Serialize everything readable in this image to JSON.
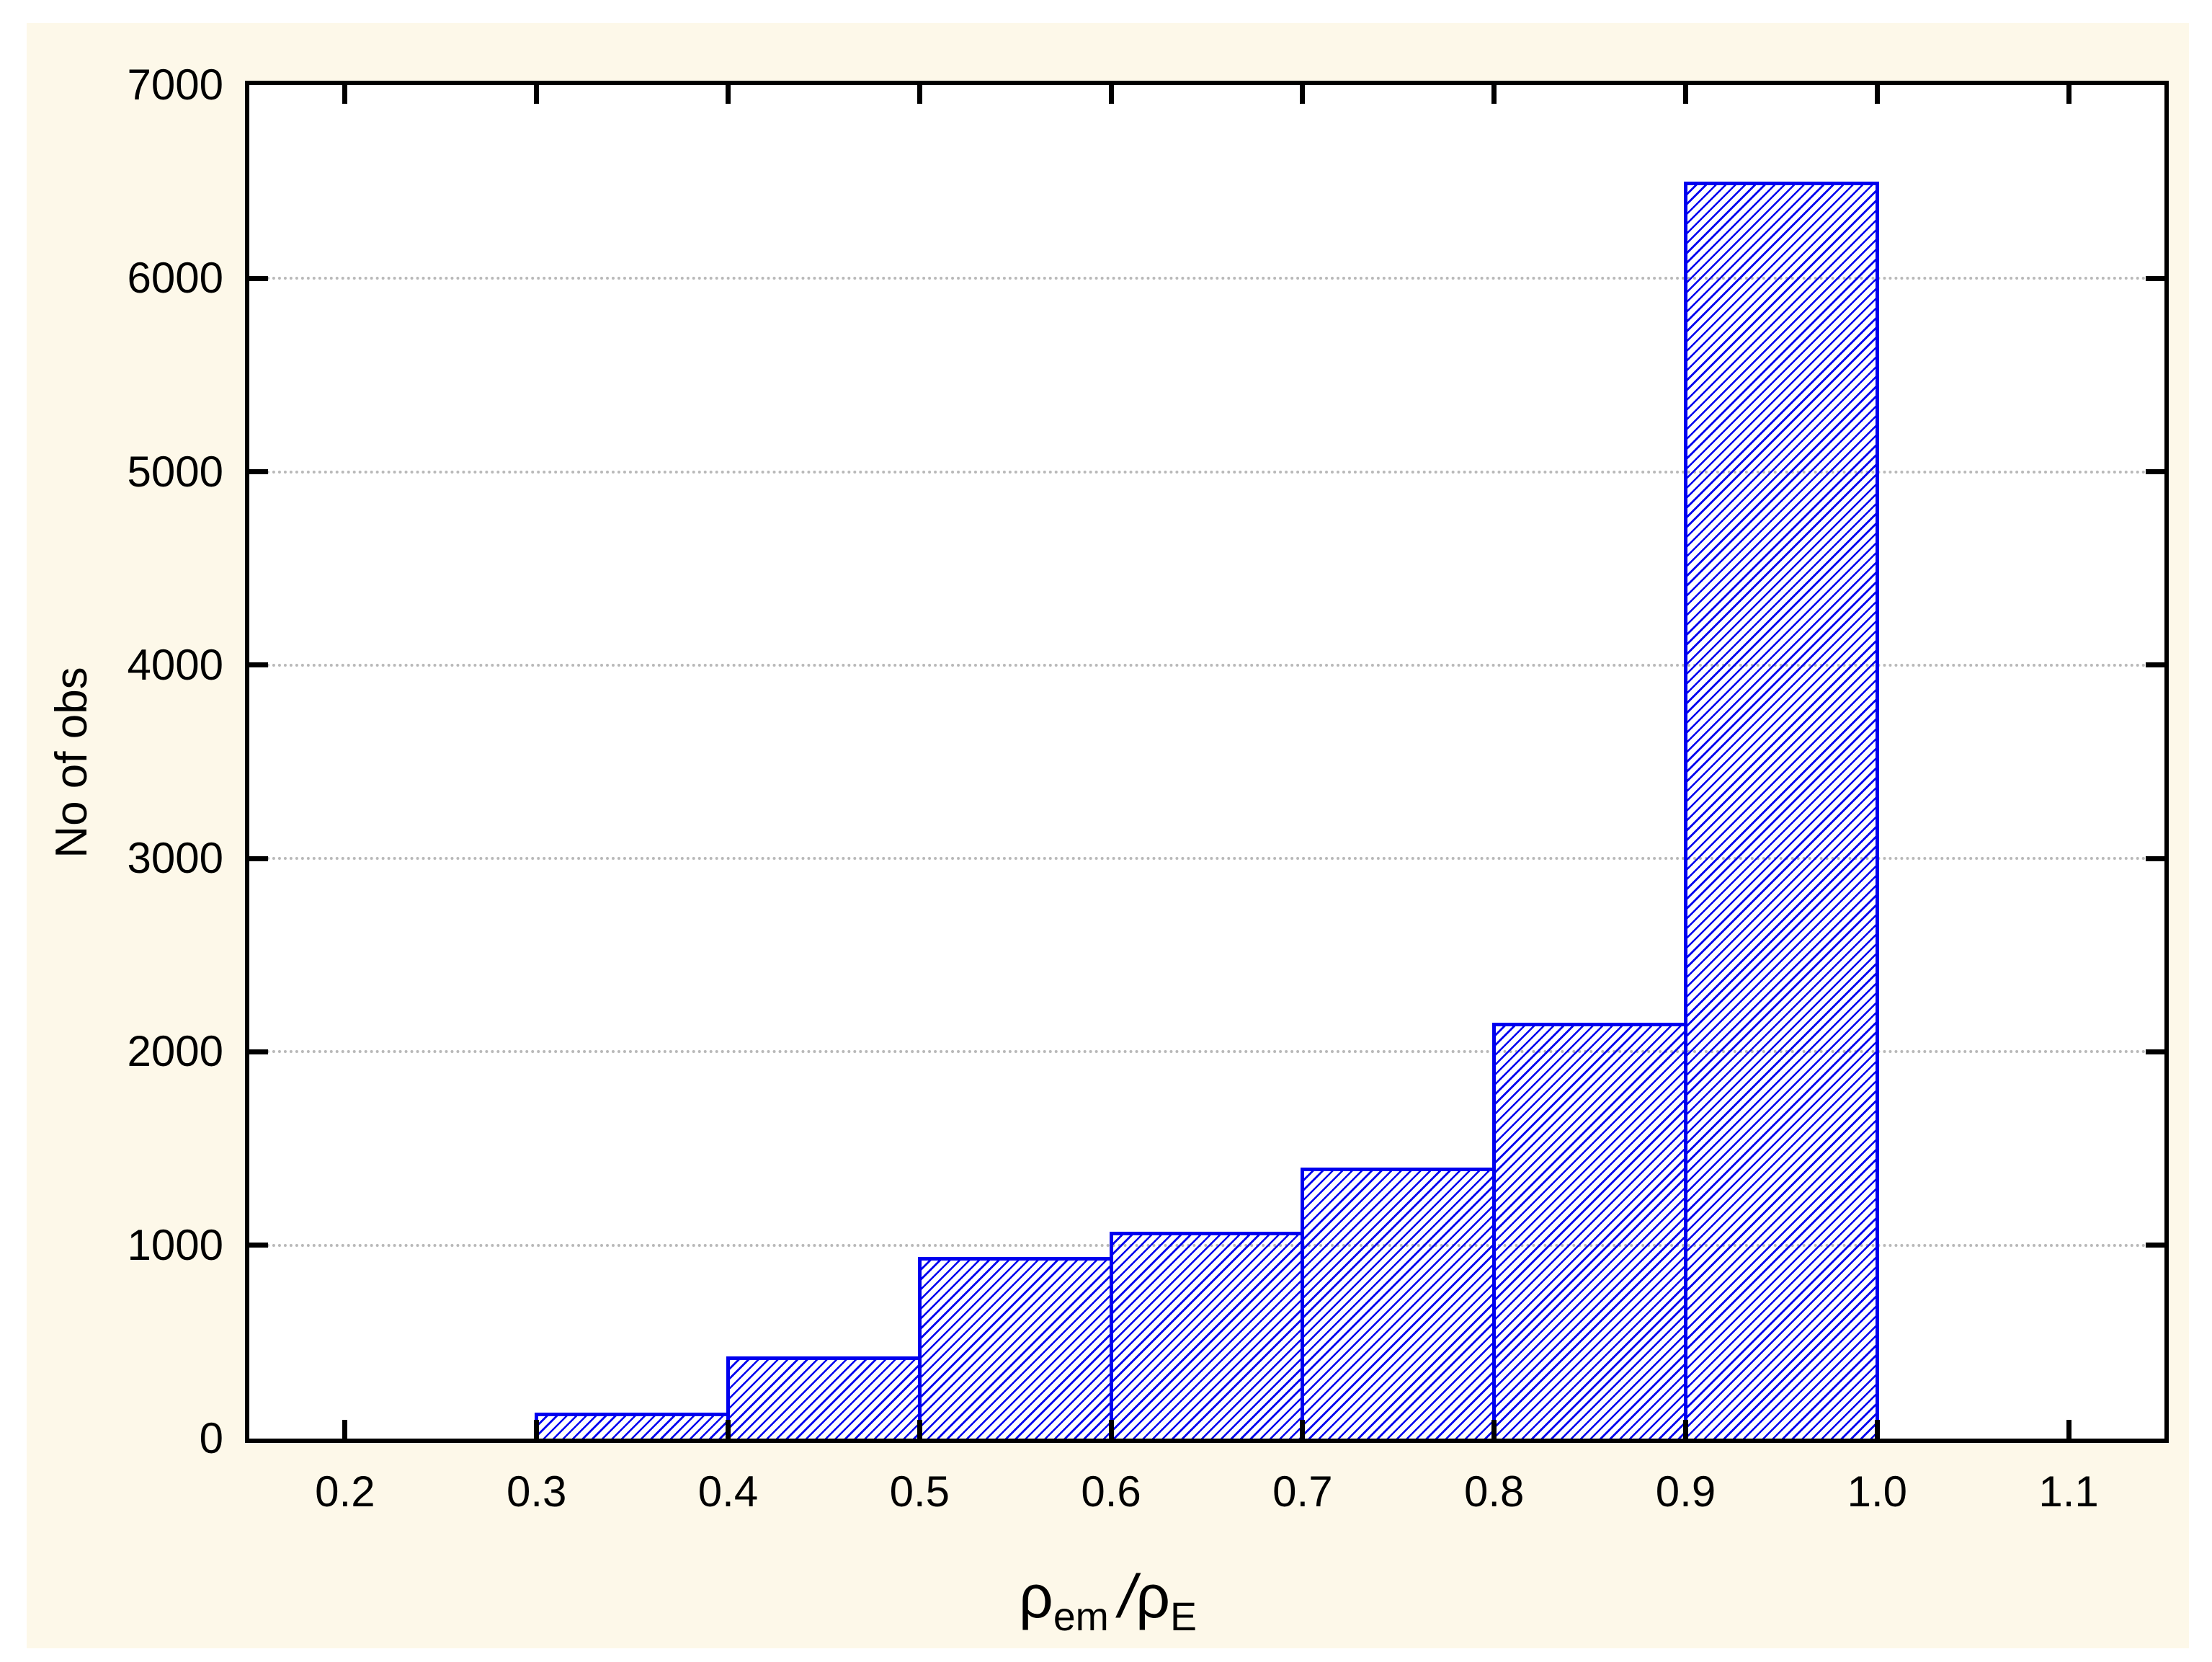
{
  "page": {
    "background": "#FFFFFF",
    "panel_background": "#FDF8E9"
  },
  "chart_data": {
    "type": "histogram",
    "title": "",
    "ylabel": "No of obs",
    "xlabel_text": "ρem /ρE",
    "xlabel_parts": {
      "rho1": "ρ",
      "sub1": "em",
      "slash": "/",
      "rho2": "ρ",
      "sub2": "E"
    },
    "xlim": [
      0.15,
      1.15
    ],
    "ylim": [
      0,
      7000
    ],
    "x_ticks": [
      0.2,
      0.3,
      0.4,
      0.5,
      0.6,
      0.7,
      0.8,
      0.9,
      1.0,
      1.1
    ],
    "x_tick_labels": [
      "0.2",
      "0.3",
      "0.4",
      "0.5",
      "0.6",
      "0.7",
      "0.8",
      "0.9",
      "1.0",
      "1.1"
    ],
    "y_ticks": [
      0,
      1000,
      2000,
      3000,
      4000,
      5000,
      6000,
      7000
    ],
    "y_tick_labels": [
      "0",
      "1000",
      "2000",
      "3000",
      "4000",
      "5000",
      "6000",
      "7000"
    ],
    "gridline_values": [
      1000,
      2000,
      3000,
      4000,
      5000,
      6000
    ],
    "bin_edges": [
      0.3,
      0.4,
      0.5,
      0.6,
      0.7,
      0.8,
      0.9,
      1.0
    ],
    "values": [
      135,
      425,
      940,
      1070,
      1400,
      2150,
      6500
    ],
    "grid": true,
    "legend": false,
    "colors": {
      "bar": "#0000EE",
      "grid": "#B9B9B9",
      "axis": "#000000",
      "text": "#000000"
    }
  }
}
